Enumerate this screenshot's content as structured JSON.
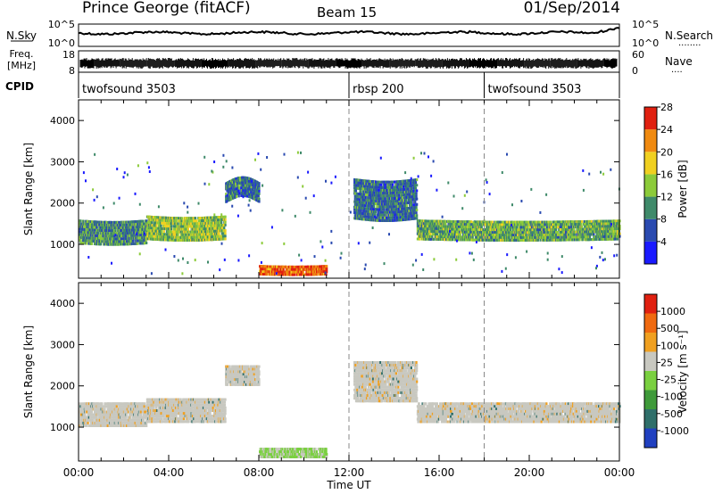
{
  "header": {
    "station": "Prince George (fitACF)",
    "beam": "Beam 15",
    "date": "01/Sep/2014"
  },
  "noise_panel": {
    "left_label": "N.Sky",
    "right_label": "N.Search",
    "tick_top": "10^5",
    "tick_bottom": "10^0",
    "tick_top_right": "10^5",
    "tick_bottom_right": "10^0",
    "legend_dots": "........"
  },
  "freq_panel": {
    "left_label_1": "Freq.",
    "left_label_2": "[MHz]",
    "right_label": "Nave",
    "tick_top": "18",
    "tick_bottom": "8",
    "tick_top_right": "60",
    "tick_bottom_right": "0",
    "legend_dots": "...."
  },
  "cpid_panel": {
    "label": "CPID",
    "modes": [
      {
        "name": "twofsound 3503",
        "start_hour": 0
      },
      {
        "name": "rbsp 200",
        "start_hour": 12
      },
      {
        "name": "twofsound 3503",
        "start_hour": 18
      }
    ]
  },
  "chart_data": [
    {
      "type": "heatmap",
      "name": "Power",
      "ylabel": "Slant Range [km]",
      "ylim": [
        180,
        4500
      ],
      "yticks": [
        "1000",
        "2000",
        "3000",
        "4000"
      ],
      "ytick_values": [
        1000,
        2000,
        3000,
        4000
      ],
      "xlim": [
        0,
        24
      ],
      "colorbar_label": "Power [dB]",
      "colorbar_ticks": [
        "4",
        "8",
        "12",
        "16",
        "20",
        "24",
        "28"
      ],
      "colorbar_colors": [
        "#1a1aff",
        "#2a4ab0",
        "#3f8a6a",
        "#8ccb3a",
        "#f0d020",
        "#f08a10",
        "#e02010"
      ],
      "bands": [
        {
          "x0": 0.0,
          "x1": 3.0,
          "r0": 1000,
          "r1": 1600,
          "value": 10
        },
        {
          "x0": 3.0,
          "x1": 6.5,
          "r0": 1100,
          "r1": 1700,
          "value": 14
        },
        {
          "x0": 6.5,
          "x1": 8.0,
          "r0": 2000,
          "r1": 2500,
          "value": 8
        },
        {
          "x0": 8.0,
          "x1": 11.0,
          "r0": 250,
          "r1": 500,
          "value": 24
        },
        {
          "x0": 12.2,
          "x1": 15.0,
          "r0": 1600,
          "r1": 2600,
          "value": 8
        },
        {
          "x0": 15.0,
          "x1": 24.0,
          "r0": 1100,
          "r1": 1600,
          "value": 12
        }
      ]
    },
    {
      "type": "heatmap",
      "name": "Velocity",
      "ylabel": "Slant Range [km]",
      "ylim": [
        180,
        4500
      ],
      "yticks": [
        "1000",
        "2000",
        "3000",
        "4000"
      ],
      "ytick_values": [
        1000,
        2000,
        3000,
        4000
      ],
      "xlim": [
        0,
        24
      ],
      "xticks": [
        "00:00",
        "04:00",
        "08:00",
        "12:00",
        "16:00",
        "20:00",
        "00:00"
      ],
      "xtick_values": [
        0,
        4,
        8,
        12,
        16,
        20,
        24
      ],
      "xlabel": "Time UT",
      "colorbar_label": "Velocity [m s⁻¹]",
      "colorbar_ticks": [
        "1000",
        "500",
        "100",
        "25",
        "-25",
        "-100",
        "-500",
        "-1000"
      ],
      "colorbar_colors": [
        "#2040c0",
        "#2f6f6a",
        "#3f9a3a",
        "#7ad040",
        "#c8c8c0",
        "#f0a020",
        "#f06a10",
        "#e02010"
      ]
    }
  ]
}
